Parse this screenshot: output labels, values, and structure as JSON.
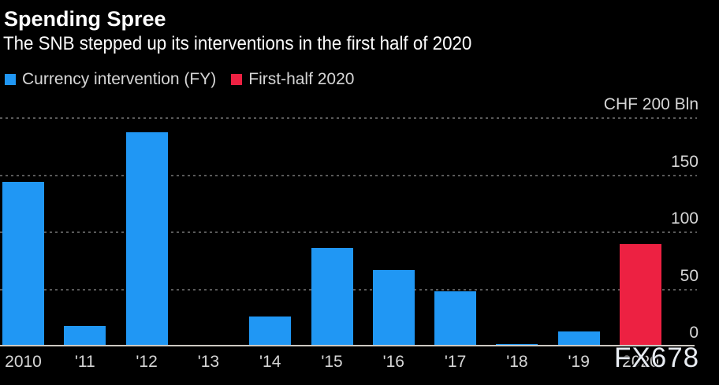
{
  "header": {
    "title": "Spending Spree",
    "subtitle": "The SNB stepped up its interventions in the first half of 2020"
  },
  "legend": {
    "items": [
      {
        "label": "Currency intervention (FY)",
        "color": "#2097f4"
      },
      {
        "label": "First-half 2020",
        "color": "#ed2142"
      }
    ]
  },
  "watermark": "FX678",
  "colors": {
    "background": "#000000",
    "bar_blue": "#2097f4",
    "bar_red": "#ed2142",
    "gridline": "#595959",
    "axis_line": "#cdc9c2",
    "tick_text": "#d6d6d6"
  },
  "chart_data": {
    "type": "bar",
    "title": "Spending Spree",
    "subtitle": "The SNB stepped up its interventions in the first half of 2020",
    "unit_label": "CHF 200 Bln",
    "xlabel": "",
    "ylabel": "CHF Bln",
    "ylim": [
      0,
      200
    ],
    "grid": "horizontal dashed",
    "legend_position": "top-left",
    "categories": [
      "2010",
      "'11",
      "'12",
      "'13",
      "'14",
      "'15",
      "'16",
      "'17",
      "'18",
      "'19",
      "2020"
    ],
    "series": [
      {
        "name": "Currency intervention (FY)",
        "color": "#2097f4",
        "values": [
          144,
          18,
          188,
          1,
          26,
          86,
          67,
          48,
          2.3,
          13,
          null
        ]
      },
      {
        "name": "First-half 2020",
        "color": "#ed2142",
        "values": [
          null,
          null,
          null,
          null,
          null,
          null,
          null,
          null,
          null,
          null,
          90
        ]
      }
    ],
    "yticks": [
      {
        "value": 200,
        "label": "CHF 200 Bln",
        "grid": true
      },
      {
        "value": 150,
        "label": "150",
        "grid": true
      },
      {
        "value": 100,
        "label": "100",
        "grid": true
      },
      {
        "value": 50,
        "label": "50",
        "grid": true
      },
      {
        "value": 0,
        "label": "0",
        "grid": false
      }
    ]
  }
}
